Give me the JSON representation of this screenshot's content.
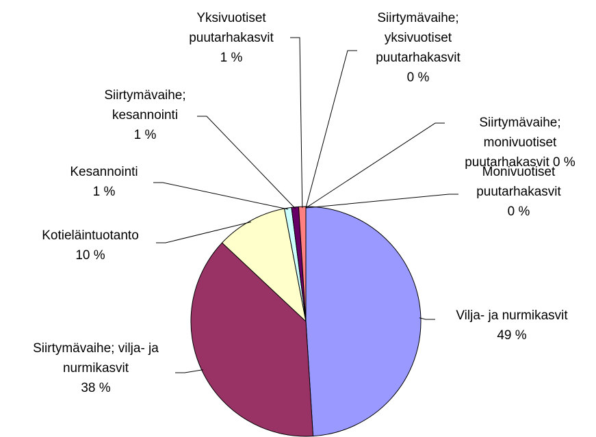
{
  "chart_data": {
    "type": "pie",
    "categories": [
      "Vilja- ja nurmikasvit",
      "Siirtymävaihe; vilja- ja nurmikasvit",
      "Kotieläintuotanto",
      "Kesannointi",
      "Siirtymävaihe; kesannointi",
      "Yksivuotiset puutarhakasvit",
      "Siirtymävaihe; yksivuotiset puutarhakasvit",
      "Siirtymävaihe; monivuotiset puutarhakasvit",
      "Monivuotiset puutarhakasvit"
    ],
    "values": [
      49,
      38,
      10,
      1,
      1,
      1,
      0,
      0,
      0
    ],
    "value_labels": [
      "49 %",
      "38 %",
      "10 %",
      "1 %",
      "1 %",
      "1 %",
      "0 %",
      "0 %",
      "0 %"
    ],
    "colors": [
      "#9999ff",
      "#993366",
      "#ffffcc",
      "#ccffff",
      "#660066",
      "#ff8080",
      "#0066cc",
      "#ccccff",
      "#000080"
    ]
  }
}
